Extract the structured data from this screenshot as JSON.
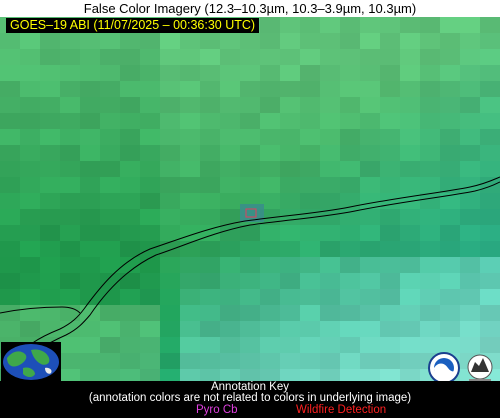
{
  "header": {
    "title": "False Color Imagery (12.3–10.3µm, 10.3–3.9µm, 10.3µm)",
    "satellite_label": "GOES–19 ABI (11/07/2025 – 00:36:30 UTC)"
  },
  "map": {
    "colors": {
      "dark_green": "#1f9a4c",
      "light_green": "#5fc47a",
      "teal": "#2ab79a",
      "cyan": "#7fdccb",
      "boundary_line": "#000000",
      "pyrocb_box": "#e040e0"
    },
    "icons": [
      "globe-icon",
      "noaa-logo-icon",
      "cimss-logo-icon"
    ]
  },
  "annotation_key": {
    "title": "Annotation Key",
    "note": "(annotation colors are not related to colors in underlying image)",
    "pyro_cb": "Pyro Cb",
    "wildfire": "Wildfire Detection",
    "pyro_color": "#e040e0",
    "wildfire_color": "#ff2020"
  }
}
